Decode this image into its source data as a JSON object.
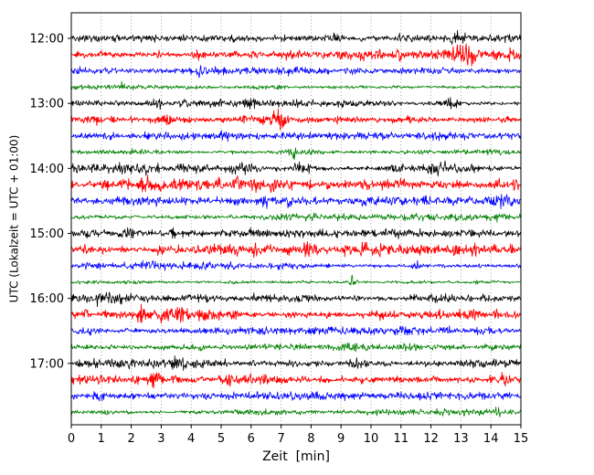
{
  "figure": {
    "background": "#ffffff",
    "grid_color": "#888888",
    "axis_color": "#000000"
  },
  "chart_data": {
    "type": "line",
    "variant": "helicorder-seismogram",
    "title": "",
    "xlabel": "Zeit  [min]",
    "ylabel": "UTC (Lokalzeit = UTC + 01:00)",
    "x_range": [
      0,
      15
    ],
    "x_tick_labels": [
      "0",
      "1",
      "2",
      "3",
      "4",
      "5",
      "6",
      "7",
      "8",
      "9",
      "10",
      "11",
      "12",
      "13",
      "14",
      "15"
    ],
    "y_tick_labels": [
      "12:00",
      "13:00",
      "14:00",
      "15:00",
      "16:00",
      "17:00"
    ],
    "minutes_per_line": 15,
    "grid": "vertical-dotted",
    "legend": null,
    "trace_color_cycle": [
      "#000000",
      "#ff0000",
      "#0000ff",
      "#008000"
    ],
    "traces": [
      {
        "start": "12:00",
        "color": "#000000",
        "base_amplitude": 1.0,
        "events": [
          {
            "t": 8.8,
            "amp": 1.1,
            "width": 0.25
          },
          {
            "t": 11.0,
            "amp": 1.0,
            "width": 0.2
          },
          {
            "t": 12.9,
            "amp": 1.1,
            "width": 0.25
          }
        ]
      },
      {
        "start": "12:15",
        "color": "#ff0000",
        "base_amplitude": 1.15,
        "texture": "beaded",
        "events": [
          {
            "t": 7.4,
            "amp": 1.2,
            "width": 0.3
          },
          {
            "t": 13.2,
            "amp": 2.4,
            "width": 0.35
          }
        ]
      },
      {
        "start": "12:30",
        "color": "#0000ff",
        "base_amplitude": 1.0,
        "events": [
          {
            "t": 4.2,
            "amp": 1.0,
            "width": 0.2
          },
          {
            "t": 9.3,
            "amp": 0.9,
            "width": 0.2
          }
        ]
      },
      {
        "start": "12:45",
        "color": "#008000",
        "base_amplitude": 0.85,
        "events": [
          {
            "t": 1.7,
            "amp": 2.0,
            "width": 0.09
          }
        ]
      },
      {
        "start": "13:00",
        "color": "#000000",
        "base_amplitude": 1.0,
        "events": [
          {
            "t": 2.9,
            "amp": 1.2,
            "width": 0.2
          },
          {
            "t": 5.9,
            "amp": 1.1,
            "width": 0.25
          },
          {
            "t": 12.7,
            "amp": 1.3,
            "width": 0.2
          }
        ]
      },
      {
        "start": "13:15",
        "color": "#ff0000",
        "base_amplitude": 1.1,
        "texture": "beaded",
        "events": [
          {
            "t": 3.1,
            "amp": 1.4,
            "width": 0.3
          },
          {
            "t": 6.9,
            "amp": 2.4,
            "width": 0.25
          }
        ]
      },
      {
        "start": "13:30",
        "color": "#0000ff",
        "base_amplitude": 0.95,
        "events": [
          {
            "t": 5.1,
            "amp": 1.2,
            "width": 0.12
          }
        ]
      },
      {
        "start": "13:45",
        "color": "#008000",
        "base_amplitude": 0.9,
        "events": [
          {
            "t": 7.4,
            "amp": 2.2,
            "width": 0.1
          }
        ]
      },
      {
        "start": "14:00",
        "color": "#000000",
        "base_amplitude": 1.25,
        "events": [
          {
            "t": 2.4,
            "amp": 1.0,
            "width": 0.3
          },
          {
            "t": 5.6,
            "amp": 1.0,
            "width": 0.3
          },
          {
            "t": 7.7,
            "amp": 1.3,
            "width": 0.3
          },
          {
            "t": 12.3,
            "amp": 1.0,
            "width": 0.4
          }
        ]
      },
      {
        "start": "14:15",
        "color": "#ff0000",
        "base_amplitude": 1.2,
        "texture": "beaded",
        "events": [
          {
            "t": 2.5,
            "amp": 1.2,
            "width": 0.3
          }
        ]
      },
      {
        "start": "14:30",
        "color": "#0000ff",
        "base_amplitude": 1.05,
        "events": [
          {
            "t": 6.6,
            "amp": 1.3,
            "width": 0.35
          },
          {
            "t": 7.3,
            "amp": 1.1,
            "width": 0.2
          },
          {
            "t": 14.4,
            "amp": 1.4,
            "width": 0.25
          }
        ]
      },
      {
        "start": "14:45",
        "color": "#008000",
        "base_amplitude": 0.95,
        "events": [
          {
            "t": 14.3,
            "amp": 1.4,
            "width": 0.3
          }
        ]
      },
      {
        "start": "15:00",
        "color": "#000000",
        "base_amplitude": 1.1,
        "events": [
          {
            "t": 0.6,
            "amp": 1.1,
            "width": 0.2
          },
          {
            "t": 1.9,
            "amp": 1.0,
            "width": 0.2
          },
          {
            "t": 3.4,
            "amp": 1.0,
            "width": 0.2
          }
        ]
      },
      {
        "start": "15:15",
        "color": "#ff0000",
        "base_amplitude": 1.2,
        "texture": "beaded",
        "events": [
          {
            "t": 3.1,
            "amp": 1.2,
            "width": 0.25
          },
          {
            "t": 8.0,
            "amp": 2.2,
            "width": 0.3
          }
        ]
      },
      {
        "start": "15:30",
        "color": "#0000ff",
        "base_amplitude": 1.0,
        "events": [
          {
            "t": 2.6,
            "amp": 1.3,
            "width": 0.3
          },
          {
            "t": 11.5,
            "amp": 1.6,
            "width": 0.1
          }
        ]
      },
      {
        "start": "15:45",
        "color": "#008000",
        "base_amplitude": 0.7,
        "events": [
          {
            "t": 9.4,
            "amp": 2.4,
            "width": 0.1
          }
        ]
      },
      {
        "start": "16:00",
        "color": "#000000",
        "base_amplitude": 1.3,
        "events": [
          {
            "t": 1.2,
            "amp": 1.0,
            "width": 0.4
          },
          {
            "t": 4.5,
            "amp": 1.0,
            "width": 0.4
          }
        ]
      },
      {
        "start": "16:15",
        "color": "#ff0000",
        "base_amplitude": 1.25,
        "texture": "beaded",
        "events": [
          {
            "t": 2.4,
            "amp": 1.2,
            "width": 0.3
          },
          {
            "t": 13.5,
            "amp": 1.1,
            "width": 0.3
          }
        ]
      },
      {
        "start": "16:30",
        "color": "#0000ff",
        "base_amplitude": 1.0,
        "events": [
          {
            "t": 13.8,
            "amp": 1.1,
            "width": 0.25
          }
        ]
      },
      {
        "start": "16:45",
        "color": "#008000",
        "base_amplitude": 1.1,
        "events": [
          {
            "t": 9.5,
            "amp": 0.9,
            "width": 0.3
          }
        ]
      },
      {
        "start": "17:00",
        "color": "#000000",
        "base_amplitude": 1.15,
        "events": [
          {
            "t": 3.5,
            "amp": 1.1,
            "width": 0.3
          },
          {
            "t": 9.5,
            "amp": 1.1,
            "width": 0.3
          }
        ]
      },
      {
        "start": "17:15",
        "color": "#ff0000",
        "base_amplitude": 1.25,
        "texture": "beaded",
        "events": [
          {
            "t": 2.8,
            "amp": 1.4,
            "width": 0.3
          },
          {
            "t": 14.5,
            "amp": 1.3,
            "width": 0.25
          }
        ]
      },
      {
        "start": "17:30",
        "color": "#0000ff",
        "base_amplitude": 0.95,
        "events": [
          {
            "t": 0.9,
            "amp": 1.1,
            "width": 0.2
          }
        ]
      },
      {
        "start": "17:45",
        "color": "#008000",
        "base_amplitude": 0.9,
        "events": [
          {
            "t": 14.2,
            "amp": 2.4,
            "width": 0.1
          }
        ]
      }
    ]
  }
}
